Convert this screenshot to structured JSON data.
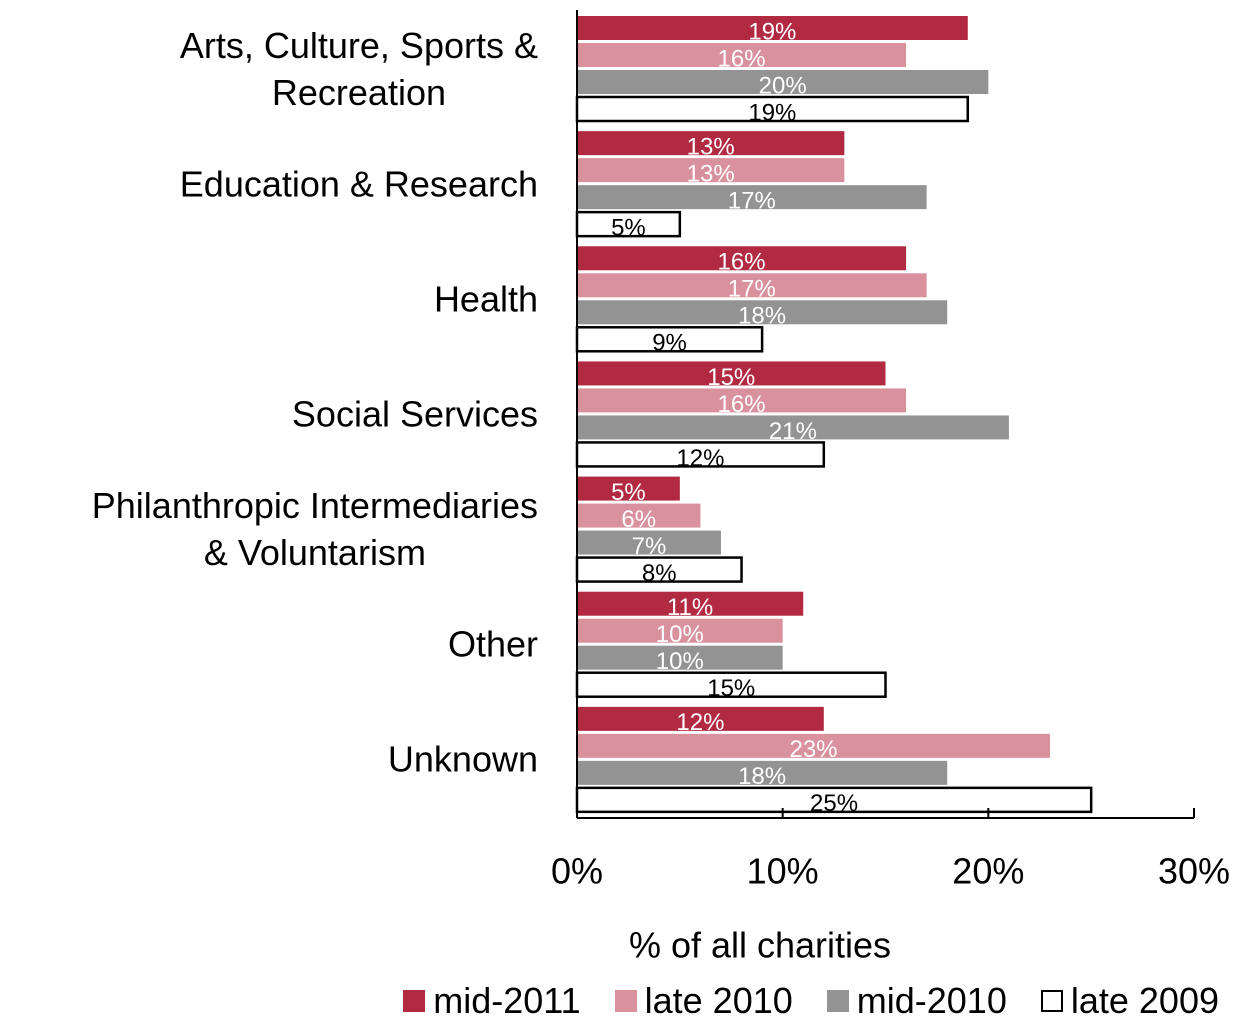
{
  "chart_data": {
    "type": "bar",
    "orientation": "horizontal",
    "categories": [
      "Arts, Culture, Sports &\nRecreation",
      "Education & Research",
      "Health",
      "Social Services",
      "Philanthropic Intermediaries\n& Voluntarism",
      "Other",
      "Unknown"
    ],
    "series": [
      {
        "name": "mid-2011",
        "color": "#b22a42",
        "label_color": "#ffffff",
        "values": [
          19,
          13,
          16,
          15,
          5,
          11,
          12
        ],
        "value_labels": [
          "19%",
          "13%",
          "16%",
          "15%",
          "5%",
          "11%",
          "12%"
        ]
      },
      {
        "name": "late 2010",
        "color": "#d9919e",
        "label_color": "#ffffff",
        "values": [
          16,
          13,
          17,
          16,
          6,
          10,
          23
        ],
        "value_labels": [
          "16%",
          "13%",
          "17%",
          "16%",
          "6%",
          "10%",
          "23%"
        ]
      },
      {
        "name": "mid-2010",
        "color": "#939393",
        "label_color": "#ffffff",
        "values": [
          20,
          17,
          18,
          21,
          7,
          10,
          18
        ],
        "value_labels": [
          "20%",
          "17%",
          "18%",
          "21%",
          "7%",
          "10%",
          "18%"
        ]
      },
      {
        "name": "late 2009",
        "color": "#ffffff",
        "label_color": "#000000",
        "values": [
          19,
          5,
          9,
          12,
          8,
          15,
          25
        ],
        "value_labels": [
          "19%",
          "5%",
          "9%",
          "12%",
          "8%",
          "15%",
          "25%"
        ]
      }
    ],
    "xlabel": "% of all charities",
    "xlim": [
      0,
      30
    ],
    "xticks": [
      {
        "value": 0,
        "label": "0%"
      },
      {
        "value": 10,
        "label": "10%"
      },
      {
        "value": 20,
        "label": "20%"
      },
      {
        "value": 30,
        "label": "30%"
      }
    ],
    "grid": false,
    "legend": "bottom"
  }
}
